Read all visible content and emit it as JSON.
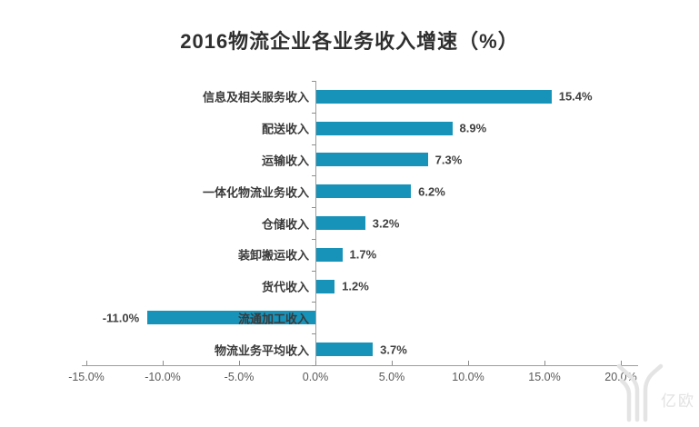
{
  "chart_data": {
    "type": "bar",
    "orientation": "horizontal",
    "title": "2016物流企业各业务收入增速（%）",
    "categories": [
      "信息及相关服务收入",
      "配送收入",
      "运输收入",
      "一体化物流业务收入",
      "仓储收入",
      "装卸搬运收入",
      "货代收入",
      "流通加工收入",
      "物流业务平均收入"
    ],
    "values": [
      15.4,
      8.9,
      7.3,
      6.2,
      3.2,
      1.7,
      1.2,
      -11.0,
      3.7
    ],
    "value_labels": [
      "15.4%",
      "8.9%",
      "7.3%",
      "6.2%",
      "3.2%",
      "1.7%",
      "1.2%",
      "-11.0%",
      "3.7%"
    ],
    "x_tick_labels": [
      "-15.0%",
      "-10.0%",
      "-5.0%",
      "0.0%",
      "5.0%",
      "10.0%",
      "15.0%",
      "20.0%"
    ],
    "x_tick_values": [
      -15,
      -10,
      -5,
      0,
      5,
      10,
      15,
      20
    ],
    "xlim": [
      -15.3,
      21.1
    ],
    "xlabel": "",
    "ylabel": "",
    "grid": false,
    "legend": "none",
    "colors": {
      "bar": "#1793ba",
      "title": "#2f2f2f",
      "category_label": "#3a3a3a",
      "value_label": "#404040",
      "axis_line": "#9d9d9d",
      "tick_label": "#595959",
      "watermark": "#e2e2e2"
    }
  },
  "watermark": {
    "logo": "yiou-logo",
    "text": "亿欧"
  }
}
